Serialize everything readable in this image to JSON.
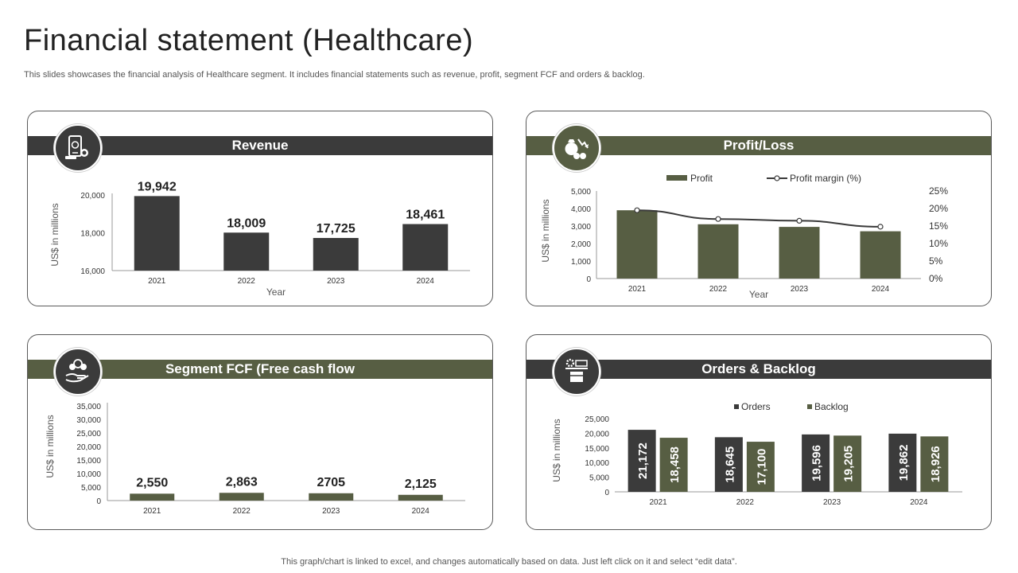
{
  "page": {
    "title": "Financial statement (Healthcare)",
    "subtitle": "This slides showcases the financial analysis of Healthcare segment. It includes financial statements such as revenue, profit, segment FCF and orders & backlog.",
    "footer": "This graph/chart is linked to excel, and changes automatically based on data. Just left click on it and select “edit data”."
  },
  "colors": {
    "dark": "#3b3b3b",
    "olive": "#575e43",
    "line": "#3a3a3a",
    "white": "#ffffff"
  },
  "cards": {
    "revenue": {
      "title": "Revenue",
      "icon": "mobile-coins-icon"
    },
    "profit": {
      "title": "Profit/Loss",
      "icon": "money-bag-down-icon"
    },
    "fcf": {
      "title": "Segment FCF (Free cash flow",
      "icon": "hand-money-icon"
    },
    "orders": {
      "title": "Orders & Backlog",
      "icon": "conveyor-gear-icon"
    }
  },
  "chart_data": [
    {
      "id": "revenue",
      "type": "bar",
      "categories": [
        "2021",
        "2022",
        "2023",
        "2024"
      ],
      "values": [
        19942,
        18009,
        17725,
        18461
      ],
      "value_labels": [
        "19,942",
        "18,009",
        "17,725",
        "18,461"
      ],
      "xlabel": "Year",
      "ylabel": "US$ in millions",
      "ylim": [
        16000,
        20000
      ],
      "yticks": [
        "16,000",
        "18,000",
        "20,000"
      ],
      "grid": false
    },
    {
      "id": "profit",
      "type": "bar",
      "categories": [
        "2021",
        "2022",
        "2023",
        "2024"
      ],
      "series": [
        {
          "name": "Profit",
          "type": "bar",
          "values": [
            3900,
            3100,
            2950,
            2700
          ]
        },
        {
          "name": "Profit margin (%)",
          "type": "line",
          "axis": "right",
          "values": [
            19.5,
            17,
            16.5,
            14.8
          ]
        }
      ],
      "xlabel": "Year",
      "ylabel": "US$ in millions",
      "ylim": [
        0,
        5000
      ],
      "yticks": [
        "0",
        "1,000",
        "2,000",
        "3,000",
        "4,000",
        "5,000"
      ],
      "y2lim": [
        0,
        25
      ],
      "y2ticks": [
        "0%",
        "5%",
        "10%",
        "15%",
        "20%",
        "25%"
      ],
      "legend": "top",
      "grid": false
    },
    {
      "id": "fcf",
      "type": "bar",
      "categories": [
        "2021",
        "2022",
        "2023",
        "2024"
      ],
      "values": [
        2550,
        2863,
        2705,
        2125
      ],
      "value_labels": [
        "2,550",
        "2,863",
        "2705",
        "2,125"
      ],
      "xlabel": "",
      "ylabel": "US$ in millions",
      "ylim": [
        0,
        35000
      ],
      "yticks": [
        "0",
        "5,000",
        "10,000",
        "15,000",
        "20,000",
        "25,000",
        "30,000",
        "35,000"
      ],
      "grid": false
    },
    {
      "id": "orders",
      "type": "bar",
      "categories": [
        "2021",
        "2022",
        "2023",
        "2024"
      ],
      "series": [
        {
          "name": "Orders",
          "values": [
            21172,
            18645,
            19596,
            19862
          ],
          "labels": [
            "21,172",
            "18,645",
            "19,596",
            "19,862"
          ]
        },
        {
          "name": "Backlog",
          "values": [
            18458,
            17100,
            19205,
            18926
          ],
          "labels": [
            "18,458",
            "17,100",
            "19,205",
            "18,926"
          ]
        }
      ],
      "xlabel": "",
      "ylabel": "US$ in millions",
      "ylim": [
        0,
        25000
      ],
      "yticks": [
        "0",
        "5,000",
        "10,000",
        "15,000",
        "20,000",
        "25,000"
      ],
      "legend": "top",
      "grid": false
    }
  ]
}
